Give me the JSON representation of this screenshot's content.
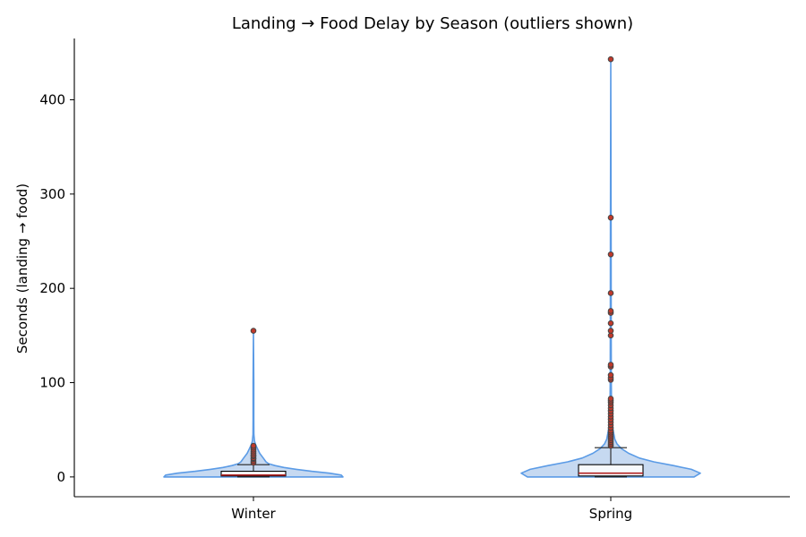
{
  "chart_data": {
    "type": "violin",
    "title": "Landing → Food Delay by Season (outliers shown)",
    "xlabel": "",
    "ylabel": "Seconds (landing → food)",
    "ylim": [
      -21,
      465
    ],
    "yticks": [
      0,
      100,
      200,
      300,
      400
    ],
    "categories": [
      "Winter",
      "Spring"
    ],
    "grid": false,
    "colors": {
      "violin_fill": "#c6d9f1",
      "violin_edge": "#5b9be6",
      "box_edge": "#000000",
      "median": "#b22222",
      "outlier_fill": "#c0392b",
      "outlier_edge": "#444444"
    },
    "series": [
      {
        "category": "Winter",
        "min": 0,
        "q1": 1,
        "median": 2,
        "q3": 6,
        "whisker_high": 13,
        "max": 155,
        "density": [
          [
            0,
            1.0
          ],
          [
            2,
            0.98
          ],
          [
            4,
            0.85
          ],
          [
            6,
            0.65
          ],
          [
            8,
            0.48
          ],
          [
            10,
            0.34
          ],
          [
            12,
            0.24
          ],
          [
            14,
            0.17
          ],
          [
            16,
            0.14
          ],
          [
            20,
            0.11
          ],
          [
            25,
            0.07
          ],
          [
            30,
            0.045
          ],
          [
            34,
            0.025
          ],
          [
            38,
            0.012
          ],
          [
            45,
            0.005
          ],
          [
            60,
            0.004
          ],
          [
            100,
            0.004
          ],
          [
            155,
            0.0
          ]
        ],
        "outliers": [
          15,
          17,
          19,
          20,
          22,
          23,
          25,
          27,
          29,
          31,
          33,
          155
        ]
      },
      {
        "category": "Spring",
        "min": 0,
        "q1": 1,
        "median": 4,
        "q3": 13,
        "whisker_high": 31,
        "max": 443,
        "density": [
          [
            0,
            0.93
          ],
          [
            4,
            1.0
          ],
          [
            8,
            0.9
          ],
          [
            12,
            0.7
          ],
          [
            16,
            0.48
          ],
          [
            20,
            0.32
          ],
          [
            25,
            0.2
          ],
          [
            30,
            0.12
          ],
          [
            35,
            0.07
          ],
          [
            40,
            0.045
          ],
          [
            50,
            0.025
          ],
          [
            60,
            0.015
          ],
          [
            70,
            0.01
          ],
          [
            80,
            0.008
          ],
          [
            100,
            0.006
          ],
          [
            150,
            0.005
          ],
          [
            250,
            0.004
          ],
          [
            443,
            0.0
          ]
        ],
        "outliers": [
          33,
          35,
          37,
          39,
          41,
          43,
          45,
          47,
          49,
          52,
          55,
          58,
          61,
          64,
          67,
          70,
          73,
          76,
          79,
          81,
          83,
          103,
          105,
          108,
          117,
          119,
          150,
          155,
          163,
          174,
          176,
          195,
          236,
          275,
          443
        ]
      }
    ]
  }
}
